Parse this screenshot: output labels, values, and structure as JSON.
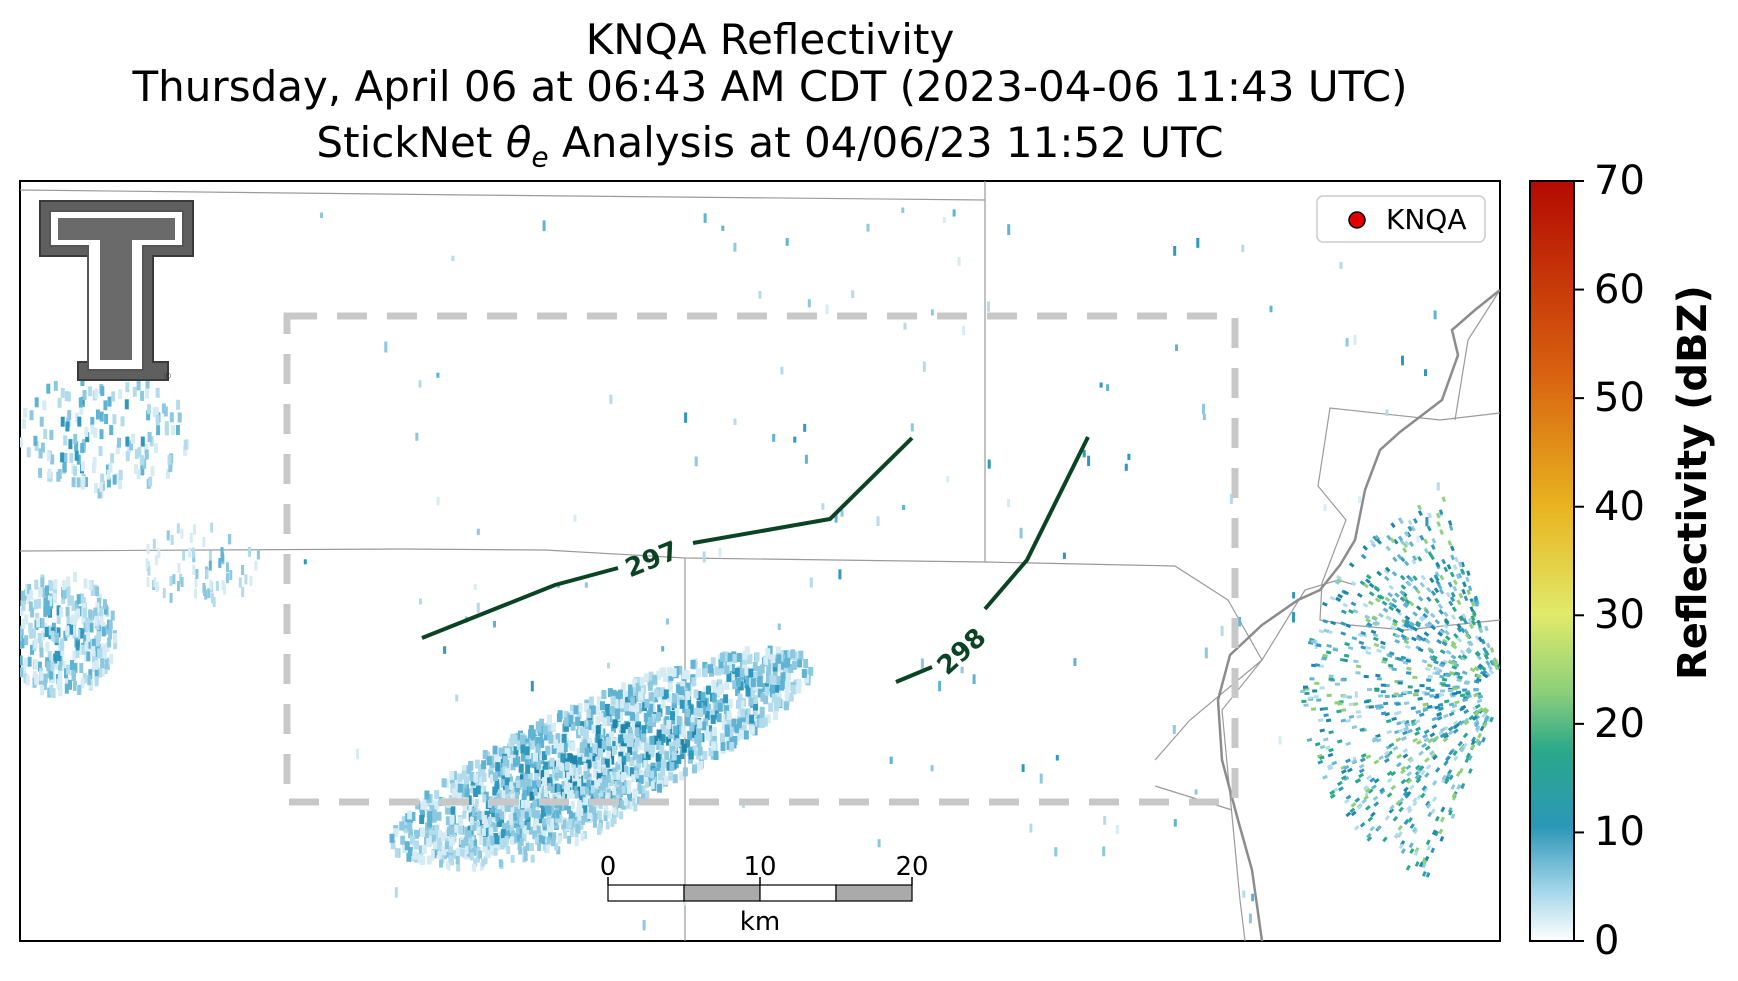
{
  "title": {
    "line1": "KNQA Reflectivity",
    "line2": "Thursday, April 06 at 06:43 AM CDT (2023-04-06 11:43 UTC)",
    "line3_prefix": "StickNet ",
    "line3_theta": "θ",
    "line3_sub": "e",
    "line3_suffix": " Analysis at 04/06/23 11:52 UTC"
  },
  "legend": {
    "label": "KNQA",
    "marker_color": "#e00000"
  },
  "contours": [
    {
      "label": "297",
      "color": "#0b4424"
    },
    {
      "label": "298",
      "color": "#0b4424"
    }
  ],
  "scalebar": {
    "ticks": [
      "0",
      "10",
      "20"
    ],
    "unit": "km"
  },
  "colorbar": {
    "label": "Reflectivity (dBZ)",
    "ticks": [
      "0",
      "10",
      "20",
      "30",
      "40",
      "50",
      "60",
      "70"
    ],
    "range": [
      0,
      70
    ],
    "colors": [
      "#ffffff",
      "#9fd3e8",
      "#2c97b8",
      "#2aa88a",
      "#8fd07a",
      "#e1ea6a",
      "#e8b420",
      "#d86010",
      "#b40a02"
    ]
  },
  "logo": {
    "name": "Texas Tech Double T"
  }
}
